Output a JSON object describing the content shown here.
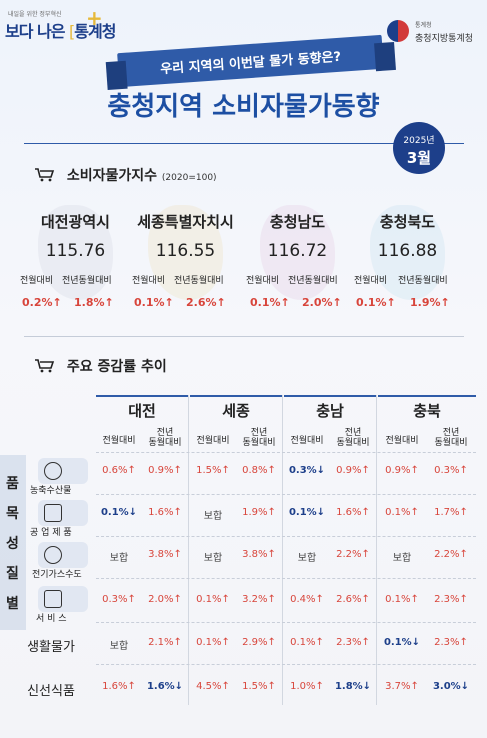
{
  "header": {
    "logo_small": "내일을 위한 정부혁신",
    "logo_main_prefix": "보다 나은",
    "logo_main_highlight": "통계청",
    "agency_sub": "통계청",
    "agency_name": "충청지방통계청"
  },
  "ribbon": "우리 지역의 이번달 물가 동향은?",
  "title": "충청지역 소비자물가동향",
  "date": {
    "year": "2025년",
    "month": "3월"
  },
  "cpi_section": {
    "title": "소비자물가지수",
    "unit": "(2020=100)"
  },
  "labels": {
    "mom": "전월대비",
    "yoy": "전년동월대비",
    "yoy_line1": "전년",
    "yoy_line2": "동월대비"
  },
  "cpi": [
    {
      "region": "대전광역시",
      "value": "115.76",
      "mom": "0.2%↑",
      "yoy": "1.8%↑",
      "color": "#d6dbe6"
    },
    {
      "region": "세종특별자치시",
      "value": "116.55",
      "mom": "0.1%↑",
      "yoy": "2.6%↑",
      "color": "#efe1c2"
    },
    {
      "region": "충청남도",
      "value": "116.72",
      "mom": "0.1%↑",
      "yoy": "2.0%↑",
      "color": "#e4cde6"
    },
    {
      "region": "충청북도",
      "value": "116.88",
      "mom": "0.1%↑",
      "yoy": "1.9%↑",
      "color": "#c8e1f2"
    }
  ],
  "trend_section": {
    "title": "주요 증감률 추이"
  },
  "table": {
    "regions": [
      "대전",
      "세종",
      "충남",
      "충북"
    ],
    "side_label": [
      "품",
      "목",
      "성",
      "질",
      "별"
    ],
    "rows": [
      {
        "label": "농축수산물",
        "icon": "farm-icon",
        "cells": [
          "0.6%↑",
          "0.9%↑",
          "1.5%↑",
          "0.8%↑",
          "0.3%↓",
          "0.9%↑",
          "0.9%↑",
          "0.3%↑"
        ]
      },
      {
        "label": "공 업 제 품",
        "icon": "factory-icon",
        "cells": [
          "0.1%↓",
          "1.6%↑",
          "보합",
          "1.9%↑",
          "0.1%↓",
          "1.6%↑",
          "0.1%↑",
          "1.7%↑"
        ]
      },
      {
        "label": "전기가스수도",
        "icon": "utility-icon",
        "cells": [
          "보합",
          "3.8%↑",
          "보합",
          "3.8%↑",
          "보합",
          "2.2%↑",
          "보합",
          "2.2%↑"
        ]
      },
      {
        "label": "서 비 스",
        "icon": "service-icon",
        "cells": [
          "0.3%↑",
          "2.0%↑",
          "0.1%↑",
          "3.2%↑",
          "0.4%↑",
          "2.6%↑",
          "0.1%↑",
          "2.3%↑"
        ]
      },
      {
        "label": "생활물가",
        "icon": "",
        "cells": [
          "보합",
          "2.1%↑",
          "0.1%↑",
          "2.9%↑",
          "0.1%↑",
          "2.3%↑",
          "0.1%↓",
          "2.3%↑"
        ]
      },
      {
        "label": "신선식품",
        "icon": "",
        "cells": [
          "1.6%↑",
          "1.6%↓",
          "4.5%↑",
          "1.5%↑",
          "1.0%↑",
          "1.8%↓",
          "3.7%↑",
          "3.0%↓"
        ]
      }
    ]
  },
  "colors": {
    "accent": "#1d4fa3",
    "up": "#d8453b",
    "down": "#1d3f8a"
  }
}
